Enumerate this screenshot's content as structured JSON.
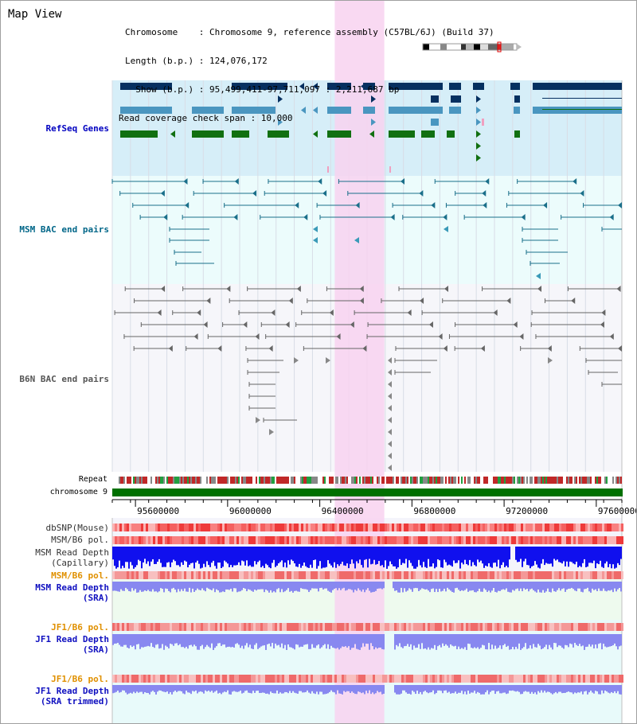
{
  "header": {
    "title": "Map View",
    "info_lines": [
      "Chromosome    : Chromosome 9, reference assembly (C57BL/6J) (Build 37)",
      "Length (b.p.) : 124,076,172",
      "  Show (b.p.) : 95,499,411-97,711,097 : 2,211,687 bp",
      "Read coverage check span : 10,000"
    ]
  },
  "region": {
    "start": 95499411,
    "end": 97711097
  },
  "highlight_region": {
    "start": 96465000,
    "end": 96680000
  },
  "colors": {
    "refseq_bg": "#d6eef8",
    "bac_bg": "#ecfcfc",
    "b6n_bg": "#f6f6fa",
    "highlight": "#f8d2f0",
    "refseq_label": "#0000c0",
    "msm_label": "#006688",
    "b6n_label": "#555555",
    "orange_label": "#e09000",
    "blue_label": "#1010c0",
    "chromosome": "#007000",
    "depth_blue": "#1010ee",
    "depth_lavender": "#8888f0",
    "snp_red": "#f04848"
  },
  "tracks": {
    "refseq": "RefSeq Genes",
    "msm_bac": "MSM BAC end pairs",
    "b6n_bac": "B6N BAC end pairs",
    "repeat": "Repeat",
    "chromosome": "chromosome 9"
  },
  "axis_ticks": [
    {
      "pos": 95600000,
      "label": "95600000"
    },
    {
      "pos": 96000000,
      "label": "96000000"
    },
    {
      "pos": 96400000,
      "label": "96400000"
    },
    {
      "pos": 96800000,
      "label": "96800000"
    },
    {
      "pos": 97200000,
      "label": "97200000"
    },
    {
      "pos": 97600000,
      "label": "97600000"
    }
  ],
  "lower_tracks": {
    "dbsnp": "dbSNP(Mouse)",
    "msm_b6_pol_1": "MSM/B6 pol.",
    "msm_depth_cap_1": "MSM Read Depth",
    "msm_depth_cap_2": "(Capillary)",
    "msm_b6_pol_2": "MSM/B6 pol.",
    "msm_depth_sra_1": "MSM Read Depth",
    "msm_depth_sra_2": "(SRA)",
    "jf1_b6_pol_1": "JF1/B6 pol.",
    "jf1_depth_sra_1": "JF1 Read Depth",
    "jf1_depth_sra_2": "(SRA)",
    "jf1_b6_pol_2": "JF1/B6 pol.",
    "jf1_depth_trim_1": "JF1 Read Depth",
    "jf1_depth_trim_2": "(SRA trimmed)"
  }
}
